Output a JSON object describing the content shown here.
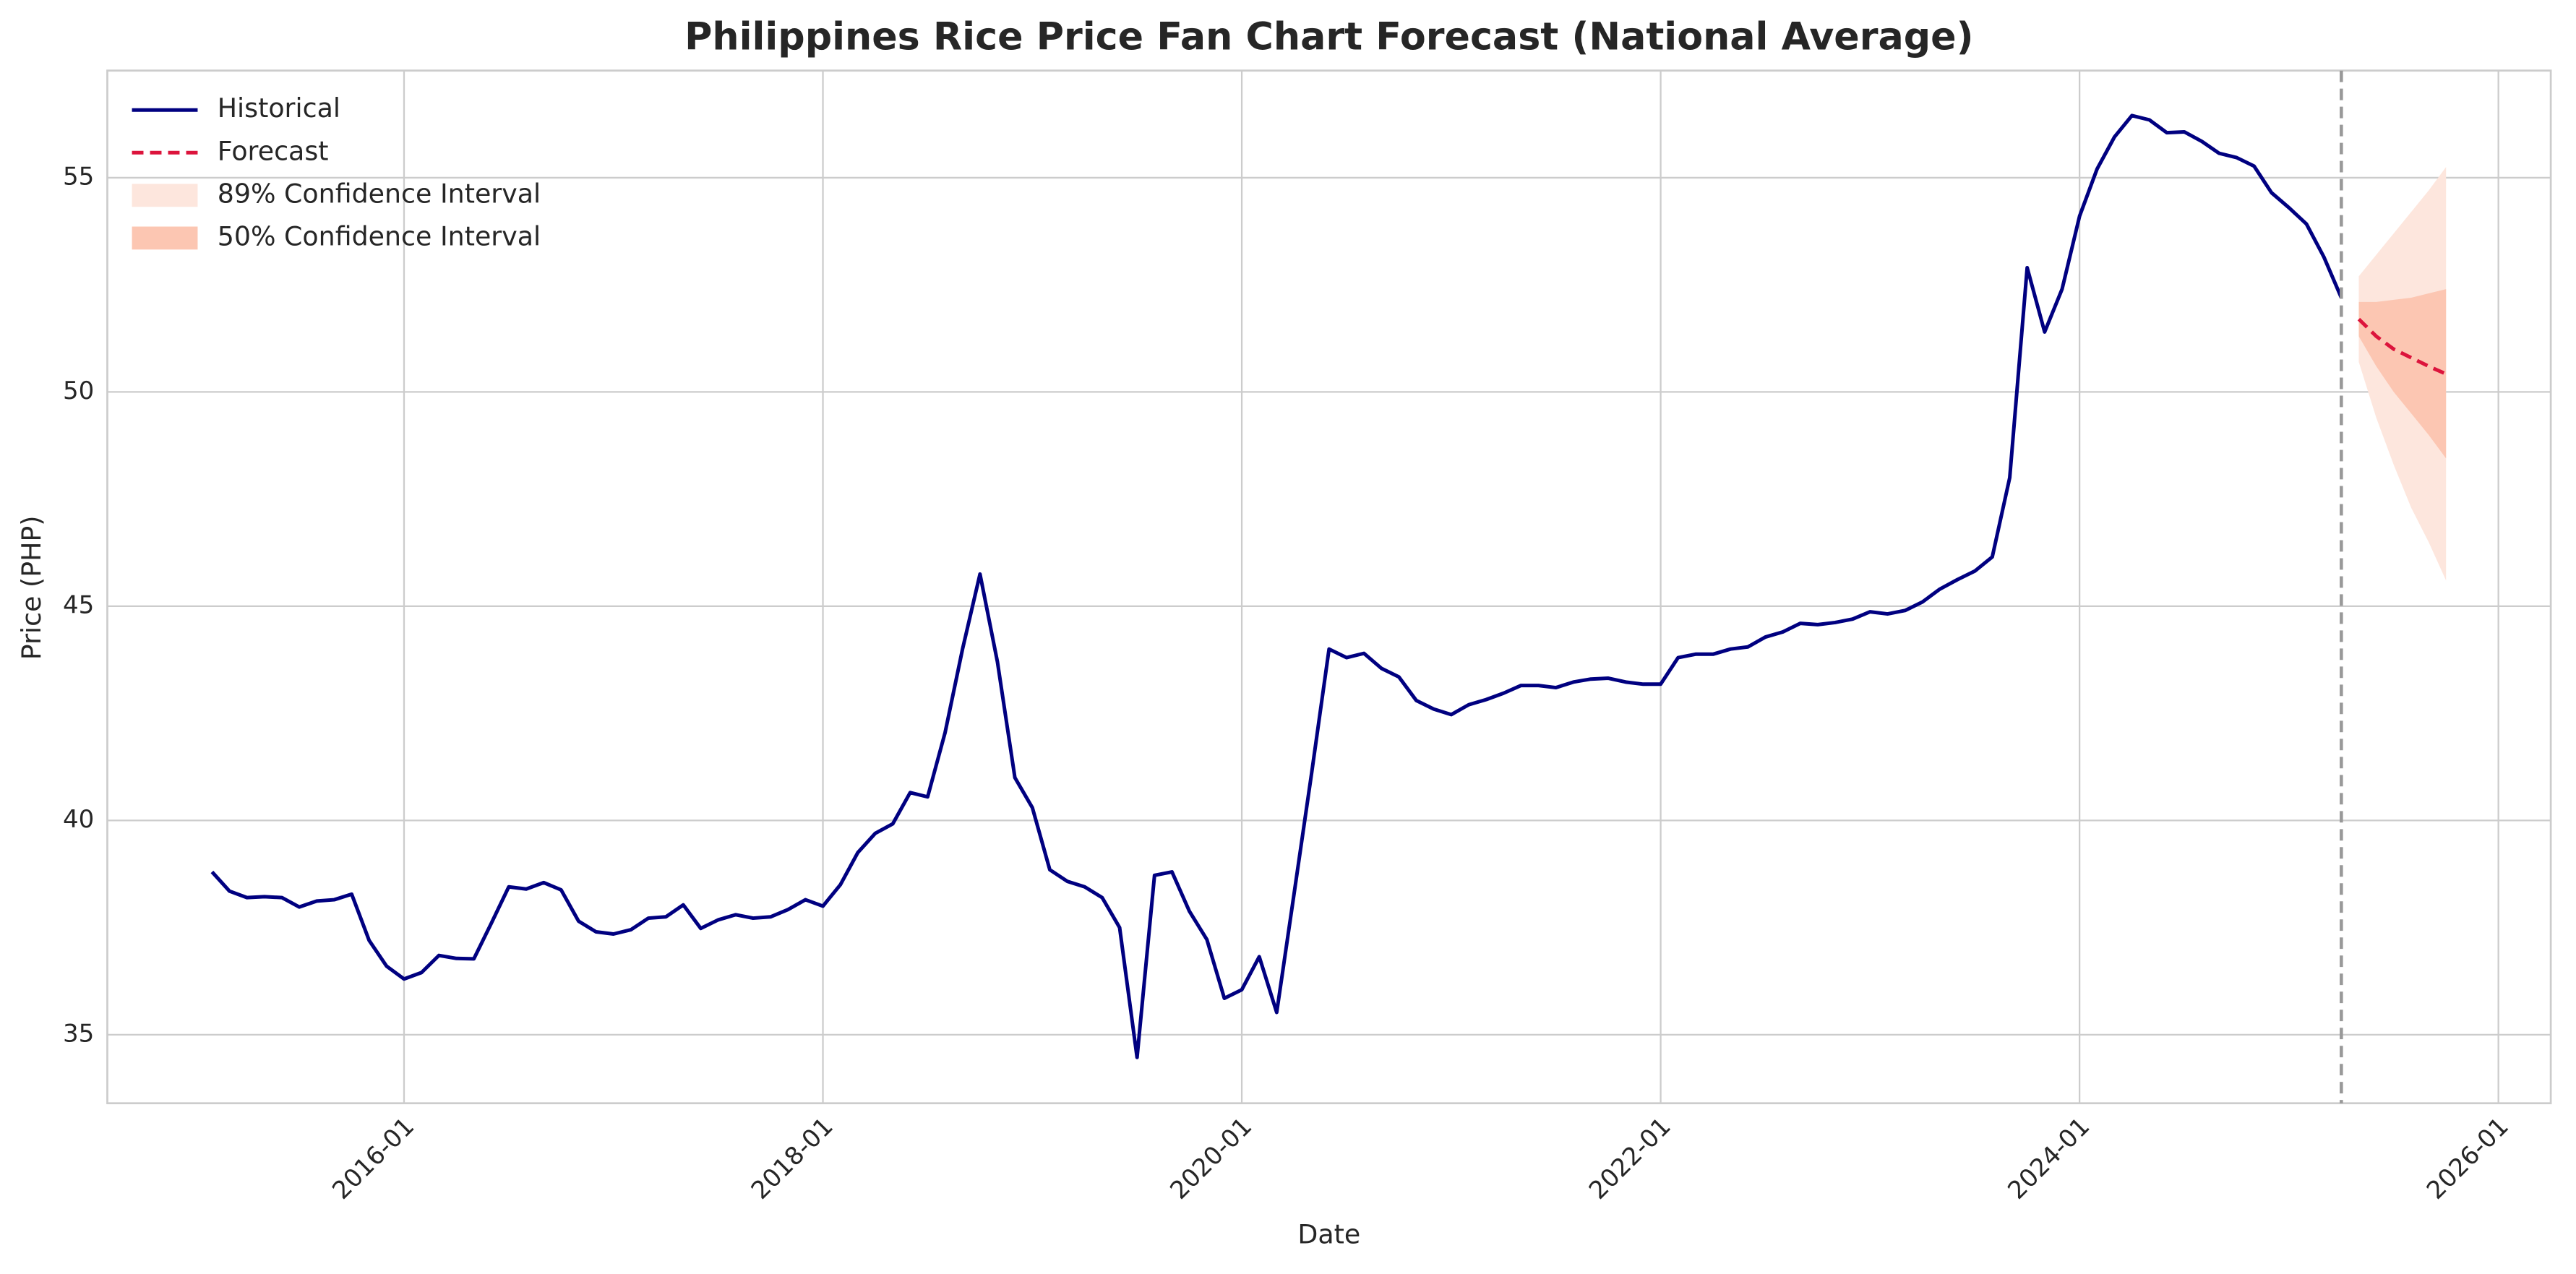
{
  "chart_data": {
    "type": "fan",
    "title": "Philippines Rice Price Fan Chart Forecast (National Average)",
    "x_label": "Date",
    "y_label": "Price (PHP)",
    "xlim": [
      "2014-08",
      "2026-04"
    ],
    "xticks": [
      "2016-01",
      "2018-01",
      "2020-01",
      "2022-01",
      "2024-01",
      "2026-01"
    ],
    "ylim": [
      33.4,
      57.5
    ],
    "yticks": [
      35,
      40,
      45,
      50,
      55
    ],
    "grid": true,
    "legend": "upper left",
    "historical": {
      "name": "Historical",
      "color": "#000080",
      "x": [
        "2015-02",
        "2015-03",
        "2015-04",
        "2015-05",
        "2015-06",
        "2015-07",
        "2015-08",
        "2015-09",
        "2015-10",
        "2015-11",
        "2015-12",
        "2016-01",
        "2016-02",
        "2016-03",
        "2016-04",
        "2016-05",
        "2016-06",
        "2016-07",
        "2016-08",
        "2016-09",
        "2016-10",
        "2016-11",
        "2016-12",
        "2017-01",
        "2017-02",
        "2017-03",
        "2017-04",
        "2017-05",
        "2017-06",
        "2017-07",
        "2017-08",
        "2017-09",
        "2017-10",
        "2017-11",
        "2017-12",
        "2018-01",
        "2018-02",
        "2018-03",
        "2018-04",
        "2018-05",
        "2018-06",
        "2018-07",
        "2018-08",
        "2018-09",
        "2018-10",
        "2018-11",
        "2018-12",
        "2019-01",
        "2019-02",
        "2019-03",
        "2019-04",
        "2019-05",
        "2019-06",
        "2019-07",
        "2019-08",
        "2019-09",
        "2019-10",
        "2019-11",
        "2019-12",
        "2020-01",
        "2020-02",
        "2020-03",
        "2020-04",
        "2020-05",
        "2020-06",
        "2020-07",
        "2020-08",
        "2020-09",
        "2020-10",
        "2020-11",
        "2020-12",
        "2021-01",
        "2021-02",
        "2021-03",
        "2021-04",
        "2021-05",
        "2021-06",
        "2021-07",
        "2021-08",
        "2021-09",
        "2021-10",
        "2021-11",
        "2021-12",
        "2022-01",
        "2022-02",
        "2022-03",
        "2022-04",
        "2022-05",
        "2022-06",
        "2022-07",
        "2022-08",
        "2022-09",
        "2022-10",
        "2022-11",
        "2022-12",
        "2023-01",
        "2023-02",
        "2023-03",
        "2023-04",
        "2023-05",
        "2023-06",
        "2023-07",
        "2023-08",
        "2023-09",
        "2023-10",
        "2023-11",
        "2023-12",
        "2024-01",
        "2024-02",
        "2024-03",
        "2024-04",
        "2024-05",
        "2024-06",
        "2024-07",
        "2024-08",
        "2024-09",
        "2024-10",
        "2024-11",
        "2024-12",
        "2025-01",
        "2025-02",
        "2025-03",
        "2025-04"
      ],
      "values": [
        38.8,
        38.35,
        38.2,
        38.22,
        38.2,
        37.98,
        38.12,
        38.15,
        38.28,
        37.2,
        36.6,
        36.3,
        36.45,
        36.85,
        36.78,
        36.77,
        37.6,
        38.45,
        38.4,
        38.55,
        38.38,
        37.65,
        37.4,
        37.35,
        37.45,
        37.72,
        37.75,
        38.03,
        37.48,
        37.68,
        37.8,
        37.72,
        37.75,
        37.92,
        38.15,
        38.0,
        38.5,
        39.25,
        39.7,
        39.92,
        40.65,
        40.55,
        42.05,
        44.0,
        45.75,
        43.7,
        41.0,
        40.3,
        38.85,
        38.58,
        38.45,
        38.2,
        37.5,
        34.47,
        38.72,
        38.8,
        37.88,
        37.22,
        35.85,
        36.05,
        36.82,
        35.52,
        38.3,
        41.1,
        44.0,
        43.8,
        43.9,
        43.55,
        43.35,
        42.8,
        42.6,
        42.47,
        42.7,
        42.82,
        42.97,
        43.15,
        43.15,
        43.1,
        43.23,
        43.3,
        43.32,
        43.23,
        43.18,
        43.18,
        43.8,
        43.88,
        43.88,
        44.0,
        44.05,
        44.28,
        44.4,
        44.6,
        44.57,
        44.62,
        44.7,
        44.87,
        44.82,
        44.9,
        45.1,
        45.4,
        45.62,
        45.82,
        46.15,
        48.0,
        52.9,
        51.4,
        52.4,
        54.1,
        55.2,
        55.95,
        56.45,
        56.35,
        56.05,
        56.07,
        55.85,
        55.57,
        55.47,
        55.27,
        54.65,
        54.3,
        53.92,
        53.15,
        52.2
      ]
    },
    "forecast": {
      "name": "Forecast",
      "color": "#dc143c",
      "x": [
        "2025-05",
        "2025-06",
        "2025-07",
        "2025-08",
        "2025-09",
        "2025-10"
      ],
      "values": [
        51.7,
        51.3,
        51.0,
        50.8,
        50.6,
        50.42
      ]
    },
    "intervals": [
      {
        "name": "89% Confidence Interval",
        "color": "#fde6dd",
        "lower": [
          50.7,
          49.4,
          48.3,
          47.3,
          46.5,
          45.6
        ],
        "upper": [
          52.7,
          53.2,
          53.7,
          54.2,
          54.7,
          55.25
        ]
      },
      {
        "name": "50% Confidence Interval",
        "color": "#fcc6b2",
        "lower": [
          51.3,
          50.6,
          50.0,
          49.5,
          49.0,
          48.45
        ],
        "upper": [
          52.1,
          52.1,
          52.15,
          52.2,
          52.3,
          52.4
        ]
      }
    ]
  }
}
